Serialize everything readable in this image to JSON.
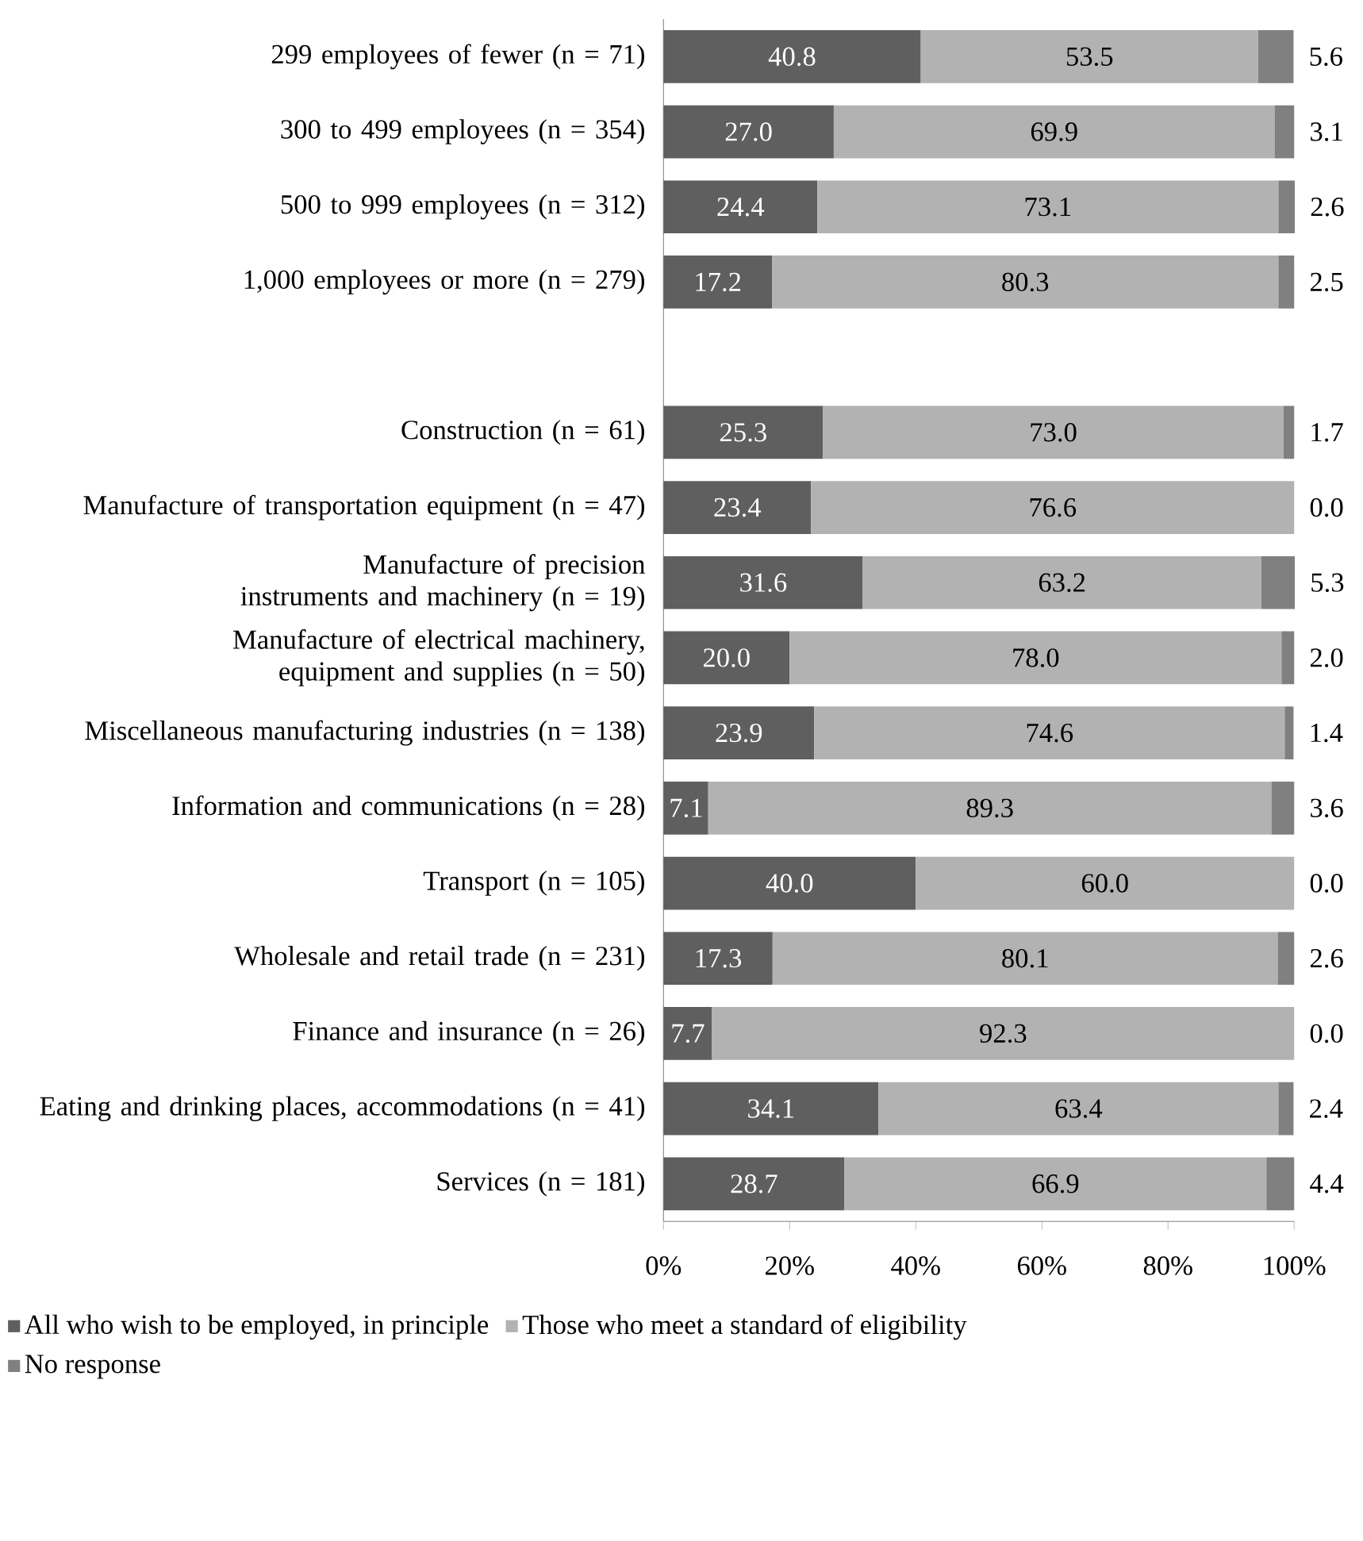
{
  "chart_data": {
    "type": "bar",
    "orientation": "horizontal",
    "stacked": true,
    "categories": [
      "299 employees of fewer (n = 71)",
      "300 to 499 employees (n = 354)",
      "500 to 999 employees (n = 312)",
      "1,000 employees or more (n = 279)",
      null,
      "Construction (n = 61)",
      "Manufacture of transportation equipment (n = 47)",
      "Manufacture of precision instruments and machinery (n = 19)",
      "Manufacture of electrical machinery, equipment and supplies (n = 50)",
      "Miscellaneous manufacturing industries (n = 138)",
      "Information and communications (n = 28)",
      "Transport (n = 105)",
      "Wholesale and retail trade (n = 231)",
      "Finance and insurance (n = 26)",
      "Eating and drinking places, accommodations (n = 41)",
      "Services (n = 181)"
    ],
    "series": [
      {
        "name": "All who wish to be employed, in principle",
        "color": "#5f5f5f",
        "values": [
          40.8,
          27.0,
          24.4,
          17.2,
          null,
          25.3,
          23.4,
          31.6,
          20.0,
          23.9,
          7.1,
          40.0,
          17.3,
          7.7,
          34.1,
          28.7
        ],
        "value_labels": [
          "40.8",
          "27.0",
          "24.4",
          "17.2",
          null,
          "25.3",
          "23.4",
          "31.6",
          "20.0",
          "23.9",
          "7.1",
          "40.0",
          "17.3",
          "7.7",
          "34.1",
          "28.7"
        ]
      },
      {
        "name": "Those who meet a standard of eligibility",
        "color": "#b2b2b2",
        "values": [
          53.5,
          69.9,
          73.1,
          80.3,
          null,
          73.0,
          76.6,
          63.2,
          78.0,
          74.6,
          89.3,
          60.0,
          80.1,
          92.3,
          63.4,
          66.9
        ],
        "value_labels": [
          "53.5",
          "69.9",
          "73.1",
          "80.3",
          null,
          "73.0",
          "76.6",
          "63.2",
          "78.0",
          "74.6",
          "89.3",
          "60.0",
          "80.1",
          "92.3",
          "63.4",
          "66.9"
        ]
      },
      {
        "name": "No response",
        "color": "#808080",
        "values": [
          5.6,
          3.1,
          2.6,
          2.5,
          null,
          1.7,
          0.0,
          5.3,
          2.0,
          1.4,
          3.6,
          0.0,
          2.6,
          0.0,
          2.4,
          4.4
        ],
        "value_labels": [
          "5.6",
          "3.1",
          "2.6",
          "2.5",
          null,
          "1.7",
          "0.0",
          "5.3",
          "2.0",
          "1.4",
          "3.6",
          "0.0",
          "2.6",
          "0.0",
          "2.4",
          "4.4"
        ]
      }
    ],
    "xlim": [
      0,
      100
    ],
    "xticks": [
      {
        "value": 0,
        "label": "0%"
      },
      {
        "value": 20,
        "label": "20%"
      },
      {
        "value": 40,
        "label": "40%"
      },
      {
        "value": 60,
        "label": "60%"
      },
      {
        "value": 80,
        "label": "80%"
      },
      {
        "value": 100,
        "label": "100%"
      }
    ],
    "legend": "bottom",
    "grid": false
  }
}
